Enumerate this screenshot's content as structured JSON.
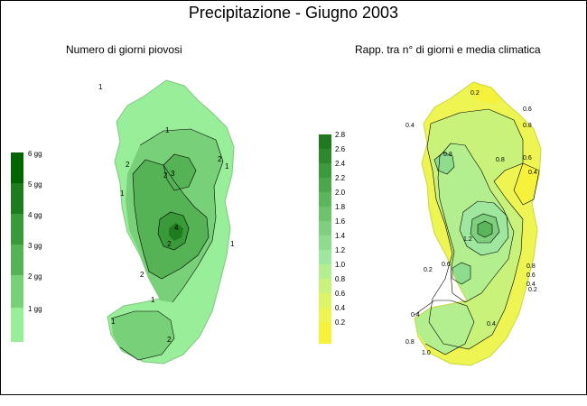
{
  "title": "Precipitazione - Giugno 2003",
  "left_panel": {
    "subtitle": "Numero di giorni piovosi",
    "legend": [
      {
        "label": "6 gg",
        "color": "#006400"
      },
      {
        "label": "5 gg",
        "color": "#1e7b1e"
      },
      {
        "label": "4 gg",
        "color": "#3a9a3a"
      },
      {
        "label": "3 gg",
        "color": "#55b355"
      },
      {
        "label": "2 gg",
        "color": "#78d078"
      },
      {
        "label": "1 gg",
        "color": "#99ee99"
      }
    ],
    "contour_labels": [
      "1",
      "1",
      "1",
      "1",
      "2",
      "2",
      "2",
      "2",
      "3",
      "4",
      "2",
      "1",
      "2",
      "1",
      "1"
    ]
  },
  "right_panel": {
    "subtitle": "Rapp. tra n° di giorni e media climatica",
    "legend": [
      {
        "label": "2.8",
        "color": "#1f7a1f"
      },
      {
        "label": "2.6",
        "color": "#2c8a2c"
      },
      {
        "label": "2.4",
        "color": "#3b9a3b"
      },
      {
        "label": "2.2",
        "color": "#4aa84a"
      },
      {
        "label": "2.0",
        "color": "#5bb65b"
      },
      {
        "label": "1.8",
        "color": "#6cc36c"
      },
      {
        "label": "1.6",
        "color": "#7ed07e"
      },
      {
        "label": "1.4",
        "color": "#8edc8e"
      },
      {
        "label": "1.2",
        "color": "#9fe79f"
      },
      {
        "label": "1.0",
        "color": "#b3ef8f"
      },
      {
        "label": "0.8",
        "color": "#c8f27a"
      },
      {
        "label": "0.6",
        "color": "#dcf466"
      },
      {
        "label": "0.4",
        "color": "#eef452"
      },
      {
        "label": "0.2",
        "color": "#f6f23c"
      }
    ],
    "contour_labels": [
      "0.2",
      "0.4",
      "0.6",
      "0.8",
      "1.2",
      "0.8",
      "0.6",
      "0.4",
      "0.2",
      "0.8",
      "0.6",
      "0.4",
      "0.4",
      "0.8",
      "1.0",
      "0.6",
      "0.4",
      "0.2",
      "0.8"
    ]
  }
}
